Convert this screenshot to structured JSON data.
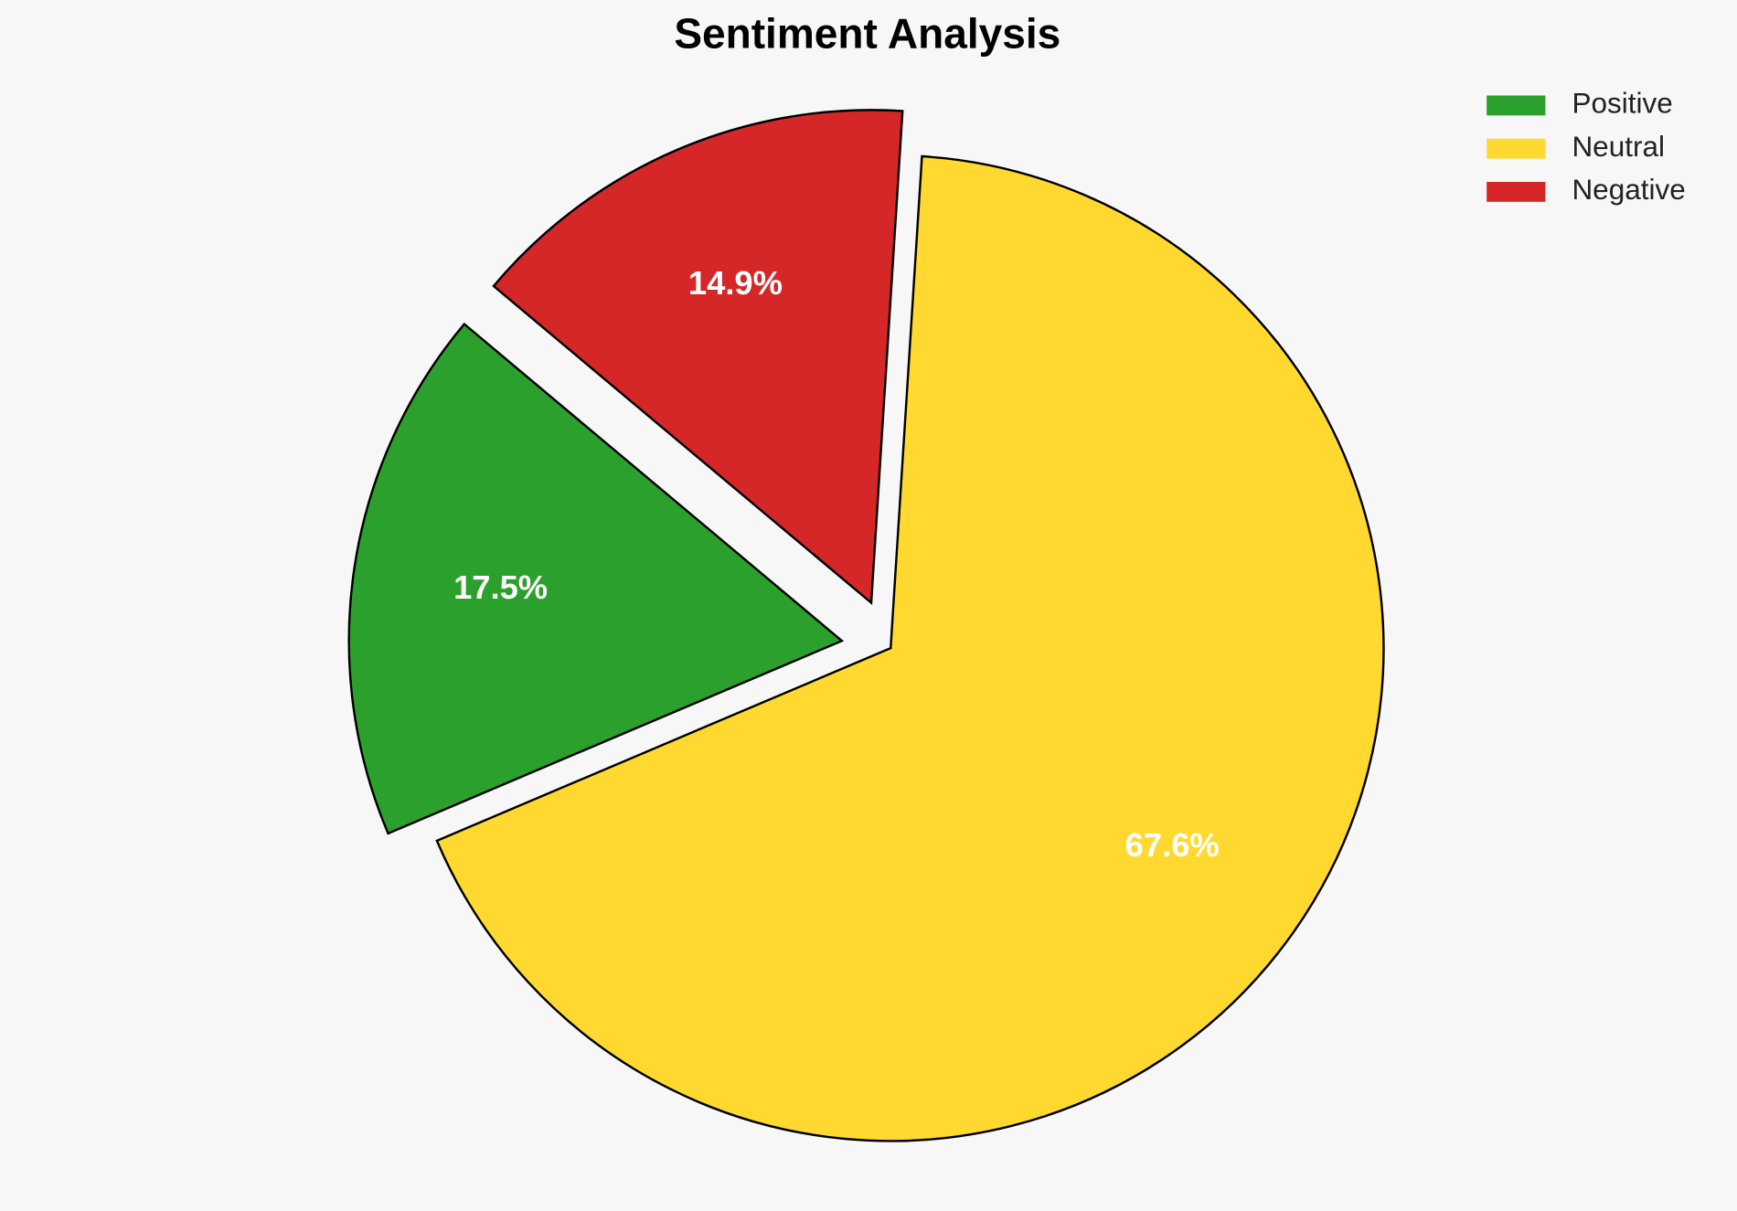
{
  "chart_data": {
    "type": "pie",
    "title": "Sentiment Analysis",
    "categories": [
      "Positive",
      "Neutral",
      "Negative"
    ],
    "values": [
      17.5,
      67.6,
      14.9
    ],
    "value_labels": [
      "17.5%",
      "67.6%",
      "14.9%"
    ],
    "colors": [
      "#2ca02c",
      "#ffd92f",
      "#d62728"
    ],
    "legend": "upper right"
  }
}
